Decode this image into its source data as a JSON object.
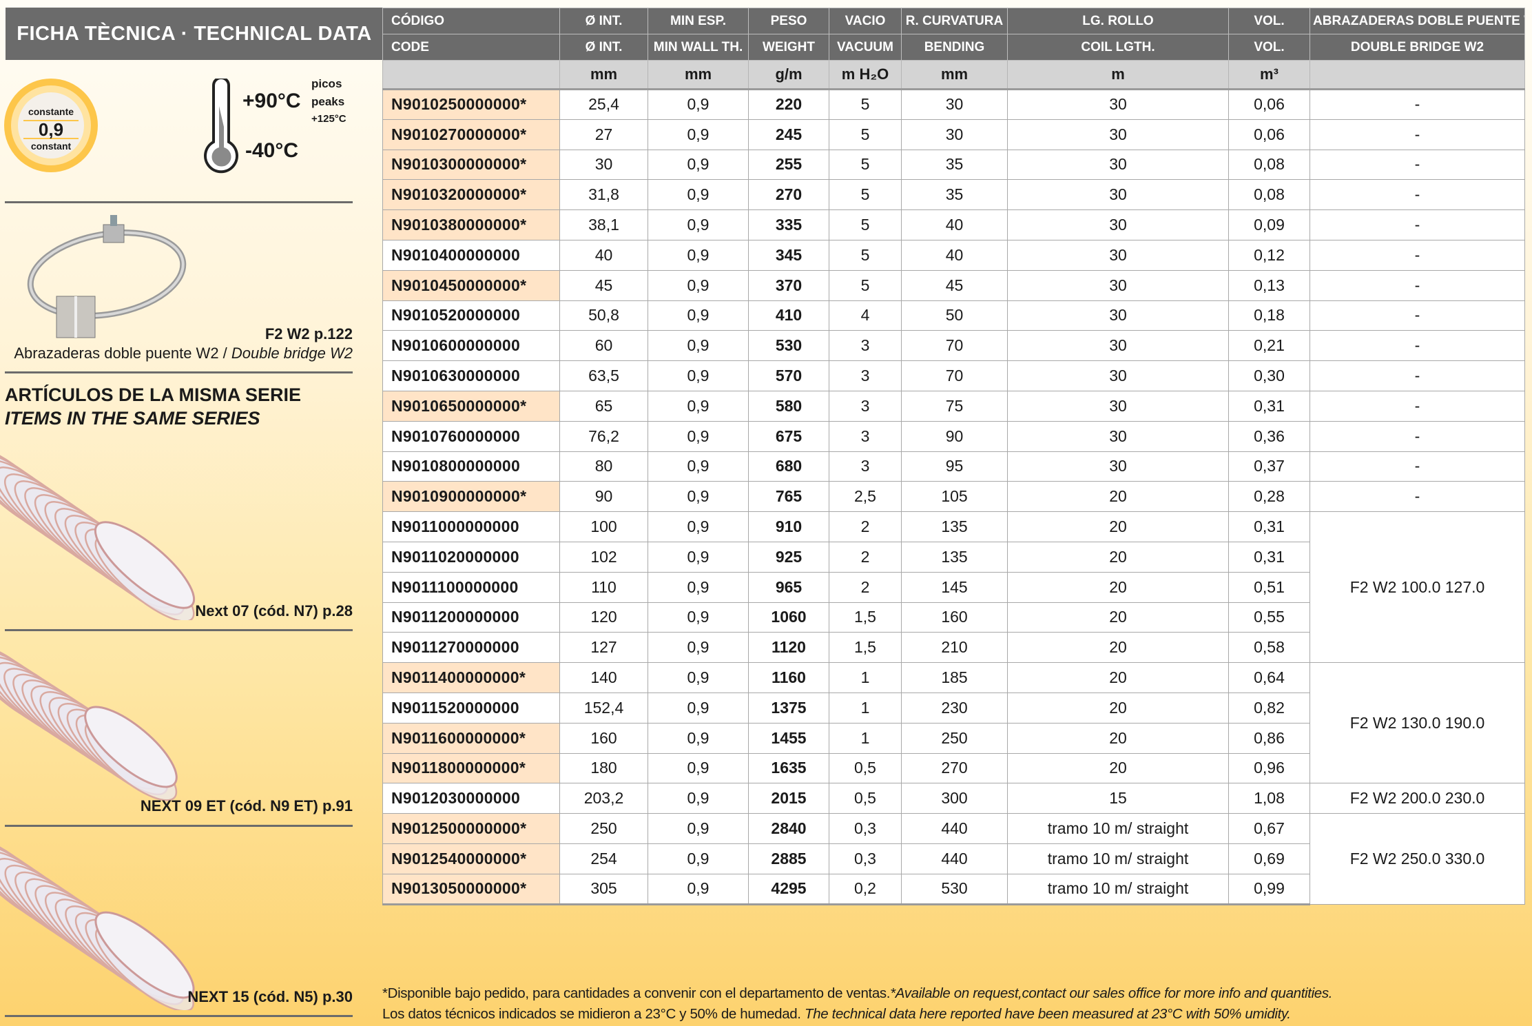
{
  "title": "FICHA TÈCNICA · TECHNICAL DATA",
  "badge": {
    "top": "constante",
    "value": "0,9",
    "bottom": "constant"
  },
  "temperature": {
    "max": "+90°C",
    "min": "-40°C",
    "peaks_es": "picos",
    "peaks_en": "peaks",
    "peaks_value": "+125°C"
  },
  "accessory": {
    "ref": "F2 W2 p.122",
    "desc_es": "Abrazaderas doble puente W2 / ",
    "desc_en": "Double bridge W2"
  },
  "series": {
    "heading_es": "ARTÍCULOS DE LA MISMA SERIE",
    "heading_en": "ITEMS IN THE SAME SERIES",
    "items": [
      {
        "label": "Next 07 (cód. N7) p.28"
      },
      {
        "label": "NEXT 09 ET (cód. N9 ET) p.91"
      },
      {
        "label": "NEXT 15 (cód. N5) p.30"
      }
    ]
  },
  "colors": {
    "header": "#6b6b6b",
    "units": "#d4d4d4",
    "highlight": "#ffe4c7",
    "accent": "#fdc64a"
  },
  "table": {
    "header_es": [
      "CÓDIGO",
      "Ø INT.",
      "MIN ESP.",
      "PESO",
      "VACIO",
      "R. CURVATURA",
      "LG. ROLLO",
      "VOL.",
      "ABRAZADERAS DOBLE PUENTE W2"
    ],
    "header_en": [
      "CODE",
      "Ø INT.",
      "MIN WALL TH.",
      "WEIGHT",
      "VACUUM",
      "BENDING",
      "COIL LGTH.",
      "VOL.",
      "DOUBLE BRIDGE W2"
    ],
    "units": [
      "",
      "mm",
      "mm",
      "g/m",
      "m H₂O",
      "mm",
      "m",
      "m³",
      ""
    ],
    "rows": [
      {
        "code": "N9010250000000*",
        "d": "25,4",
        "w": "0,9",
        "g": "220",
        "v": "5",
        "r": "30",
        "l": "30",
        "vol": "0,06",
        "hl": true
      },
      {
        "code": "N9010270000000*",
        "d": "27",
        "w": "0,9",
        "g": "245",
        "v": "5",
        "r": "30",
        "l": "30",
        "vol": "0,06",
        "hl": true
      },
      {
        "code": "N9010300000000*",
        "d": "30",
        "w": "0,9",
        "g": "255",
        "v": "5",
        "r": "35",
        "l": "30",
        "vol": "0,08",
        "hl": true
      },
      {
        "code": "N9010320000000*",
        "d": "31,8",
        "w": "0,9",
        "g": "270",
        "v": "5",
        "r": "35",
        "l": "30",
        "vol": "0,08",
        "hl": true
      },
      {
        "code": "N9010380000000*",
        "d": "38,1",
        "w": "0,9",
        "g": "335",
        "v": "5",
        "r": "40",
        "l": "30",
        "vol": "0,09",
        "hl": true
      },
      {
        "code": "N9010400000000",
        "d": "40",
        "w": "0,9",
        "g": "345",
        "v": "5",
        "r": "40",
        "l": "30",
        "vol": "0,12",
        "hl": false
      },
      {
        "code": "N9010450000000*",
        "d": "45",
        "w": "0,9",
        "g": "370",
        "v": "5",
        "r": "45",
        "l": "30",
        "vol": "0,13",
        "hl": true
      },
      {
        "code": "N9010520000000",
        "d": "50,8",
        "w": "0,9",
        "g": "410",
        "v": "4",
        "r": "50",
        "l": "30",
        "vol": "0,18",
        "hl": false
      },
      {
        "code": "N9010600000000",
        "d": "60",
        "w": "0,9",
        "g": "530",
        "v": "3",
        "r": "70",
        "l": "30",
        "vol": "0,21",
        "hl": false
      },
      {
        "code": "N9010630000000",
        "d": "63,5",
        "w": "0,9",
        "g": "570",
        "v": "3",
        "r": "70",
        "l": "30",
        "vol": "0,30",
        "hl": false
      },
      {
        "code": "N9010650000000*",
        "d": "65",
        "w": "0,9",
        "g": "580",
        "v": "3",
        "r": "75",
        "l": "30",
        "vol": "0,31",
        "hl": true
      },
      {
        "code": "N9010760000000",
        "d": "76,2",
        "w": "0,9",
        "g": "675",
        "v": "3",
        "r": "90",
        "l": "30",
        "vol": "0,36",
        "hl": false
      },
      {
        "code": "N9010800000000",
        "d": "80",
        "w": "0,9",
        "g": "680",
        "v": "3",
        "r": "95",
        "l": "30",
        "vol": "0,37",
        "hl": false
      },
      {
        "code": "N9010900000000*",
        "d": "90",
        "w": "0,9",
        "g": "765",
        "v": "2,5",
        "r": "105",
        "l": "20",
        "vol": "0,28",
        "hl": true
      },
      {
        "code": "N9011000000000",
        "d": "100",
        "w": "0,9",
        "g": "910",
        "v": "2",
        "r": "135",
        "l": "20",
        "vol": "0,31",
        "hl": false
      },
      {
        "code": "N9011020000000",
        "d": "102",
        "w": "0,9",
        "g": "925",
        "v": "2",
        "r": "135",
        "l": "20",
        "vol": "0,31",
        "hl": false
      },
      {
        "code": "N9011100000000",
        "d": "110",
        "w": "0,9",
        "g": "965",
        "v": "2",
        "r": "145",
        "l": "20",
        "vol": "0,51",
        "hl": false
      },
      {
        "code": "N9011200000000",
        "d": "120",
        "w": "0,9",
        "g": "1060",
        "v": "1,5",
        "r": "160",
        "l": "20",
        "vol": "0,55",
        "hl": false
      },
      {
        "code": "N9011270000000",
        "d": "127",
        "w": "0,9",
        "g": "1120",
        "v": "1,5",
        "r": "210",
        "l": "20",
        "vol": "0,58",
        "hl": false
      },
      {
        "code": "N9011400000000*",
        "d": "140",
        "w": "0,9",
        "g": "1160",
        "v": "1",
        "r": "185",
        "l": "20",
        "vol": "0,64",
        "hl": true
      },
      {
        "code": "N9011520000000",
        "d": "152,4",
        "w": "0,9",
        "g": "1375",
        "v": "1",
        "r": "230",
        "l": "20",
        "vol": "0,82",
        "hl": false
      },
      {
        "code": "N9011600000000*",
        "d": "160",
        "w": "0,9",
        "g": "1455",
        "v": "1",
        "r": "250",
        "l": "20",
        "vol": "0,86",
        "hl": true
      },
      {
        "code": "N9011800000000*",
        "d": "180",
        "w": "0,9",
        "g": "1635",
        "v": "0,5",
        "r": "270",
        "l": "20",
        "vol": "0,96",
        "hl": true
      },
      {
        "code": "N9012030000000",
        "d": "203,2",
        "w": "0,9",
        "g": "2015",
        "v": "0,5",
        "r": "300",
        "l": "15",
        "vol": "1,08",
        "hl": false
      },
      {
        "code": "N9012500000000*",
        "d": "250",
        "w": "0,9",
        "g": "2840",
        "v": "0,3",
        "r": "440",
        "l": "tramo 10 m/ straight",
        "vol": "0,67",
        "hl": true
      },
      {
        "code": "N9012540000000*",
        "d": "254",
        "w": "0,9",
        "g": "2885",
        "v": "0,3",
        "r": "440",
        "l": "tramo 10 m/ straight",
        "vol": "0,69",
        "hl": true
      },
      {
        "code": "N9013050000000*",
        "d": "305",
        "w": "0,9",
        "g": "4295",
        "v": "0,2",
        "r": "530",
        "l": "tramo 10 m/ straight",
        "vol": "0,99",
        "hl": true
      }
    ],
    "clamps": [
      {
        "start": 0,
        "span": 1,
        "text": "-"
      },
      {
        "start": 1,
        "span": 1,
        "text": "-"
      },
      {
        "start": 2,
        "span": 1,
        "text": "-"
      },
      {
        "start": 3,
        "span": 1,
        "text": "-"
      },
      {
        "start": 4,
        "span": 1,
        "text": "-"
      },
      {
        "start": 5,
        "span": 1,
        "text": "-"
      },
      {
        "start": 6,
        "span": 1,
        "text": "-"
      },
      {
        "start": 7,
        "span": 1,
        "text": "-"
      },
      {
        "start": 8,
        "span": 1,
        "text": "-"
      },
      {
        "start": 9,
        "span": 1,
        "text": "-"
      },
      {
        "start": 10,
        "span": 1,
        "text": "-"
      },
      {
        "start": 11,
        "span": 1,
        "text": "-"
      },
      {
        "start": 12,
        "span": 1,
        "text": "-"
      },
      {
        "start": 13,
        "span": 1,
        "text": "-"
      },
      {
        "start": 14,
        "span": 5,
        "text": "F2 W2 100.0 127.0"
      },
      {
        "start": 19,
        "span": 4,
        "text": "F2 W2 130.0 190.0"
      },
      {
        "start": 23,
        "span": 1,
        "text": "F2 W2 200.0 230.0"
      },
      {
        "start": 24,
        "span": 3,
        "text": "F2 W2 250.0 330.0"
      }
    ]
  },
  "footnote": {
    "line1_es": "*Disponible bajo pedido, para cantidades a convenir con el departamento de ventas.",
    "line1_en": "*Available on request,contact our sales office for more info and quantities.",
    "line2_es": "Los datos técnicos indicados se midieron a 23°C y 50% de humedad. ",
    "line2_en": "The technical data here reported have been measured at 23°C with 50% umidity."
  }
}
